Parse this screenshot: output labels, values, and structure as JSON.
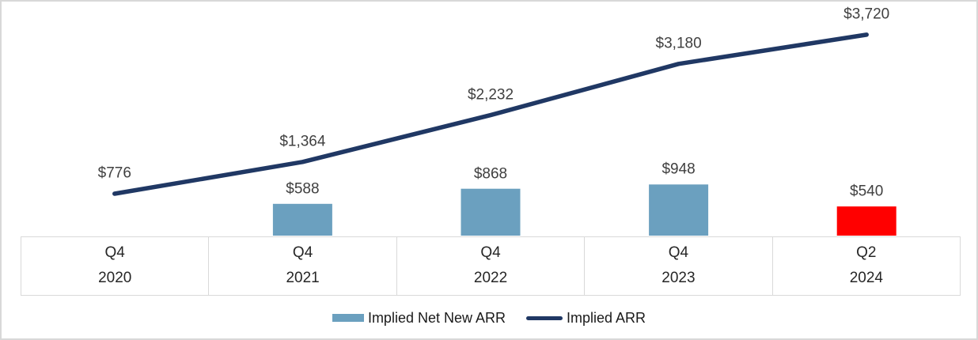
{
  "chart_data": {
    "type": "combo-bar-line",
    "title": "",
    "xlabel": "",
    "ylabel": "",
    "grid": false,
    "legend_position": "bottom-center",
    "ylim": [
      0,
      4200
    ],
    "categories": [
      {
        "quarter": "Q4",
        "year": "2020"
      },
      {
        "quarter": "Q4",
        "year": "2021"
      },
      {
        "quarter": "Q4",
        "year": "2022"
      },
      {
        "quarter": "Q4",
        "year": "2023"
      },
      {
        "quarter": "Q2",
        "year": "2024"
      }
    ],
    "series": [
      {
        "name": "Implied Net New ARR",
        "type": "bar",
        "values": [
          null,
          588,
          868,
          948,
          540
        ],
        "labels": [
          "",
          "$588",
          "$868",
          "$948",
          "$540"
        ],
        "bar_colors": [
          null,
          "#6ba0bf",
          "#6ba0bf",
          "#6ba0bf",
          "#ff0000"
        ]
      },
      {
        "name": "Implied ARR",
        "type": "line",
        "values": [
          776,
          1364,
          2232,
          3180,
          3720
        ],
        "labels": [
          "$776",
          "$1,364",
          "$2,232",
          "$3,180",
          "$3,720"
        ],
        "color": "#203864"
      }
    ],
    "legend": [
      {
        "label": "Implied Net New ARR",
        "color": "#6ba0bf",
        "shape": "rect"
      },
      {
        "label": "Implied ARR",
        "color": "#203864",
        "shape": "line"
      }
    ]
  },
  "colors": {
    "bar_default": "#6ba0bf",
    "bar_highlight": "#ff0000",
    "line": "#203864",
    "data_label_text": "#404040",
    "axis_text": "#262626",
    "axis_border": "#d9d9d9",
    "frame_border": "#d8d8d8"
  }
}
